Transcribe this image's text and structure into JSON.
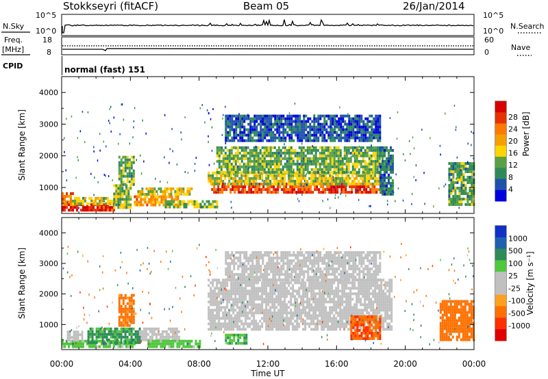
{
  "header": {
    "title": "Stokkseyri (fitACF)",
    "beam": "Beam 05",
    "date": "26/Jan/2014"
  },
  "noise_panel": {
    "left_label": "N.Sky",
    "right_label": "N.Search",
    "left_ticks": [
      "10^5",
      "10^0"
    ],
    "right_ticks": [
      "10^5",
      "10^0"
    ]
  },
  "freq_panel": {
    "left_label_1": "Freq.",
    "left_label_2": "[MHz]",
    "right_label": "Nave",
    "left_ticks": [
      "18",
      "8"
    ],
    "right_ticks": [
      "60",
      "0"
    ]
  },
  "cpid_panel": {
    "label": "CPID",
    "program": "normal (fast) 151"
  },
  "time_axis": {
    "label": "Time UT",
    "ticks": [
      "00:00",
      "04:00",
      "08:00",
      "12:00",
      "16:00",
      "20:00",
      "00:00"
    ]
  },
  "colors": {
    "power": [
      "#0000e0",
      "#1e52aa",
      "#2e8b57",
      "#5aa046",
      "#ffd400",
      "#f4a000",
      "#ff7a00",
      "#e83000",
      "#d80000"
    ],
    "velocity": [
      "#1030c8",
      "#2060b0",
      "#2e8b57",
      "#4ec83c",
      "#c0c0c0",
      "#c0c0c0",
      "#ffa020",
      "#ff7000",
      "#ff3000",
      "#e00000"
    ]
  },
  "chart_data": [
    {
      "type": "heatmap",
      "title": "",
      "xlabel": "Time UT",
      "ylabel": "Slant Range [km]",
      "x_range_hours": [
        0,
        24
      ],
      "ylim": [
        180,
        4500
      ],
      "yticks": [
        "1000",
        "2000",
        "3000",
        "4000"
      ],
      "colorbar": {
        "label": "Power [dB]",
        "ticks": [
          "4",
          "8",
          "12",
          "16",
          "20",
          "24",
          "28"
        ],
        "range": [
          0,
          30
        ]
      },
      "regions": [
        {
          "t": [
            0.0,
            3.0
          ],
          "r": [
            250,
            500
          ],
          "power": 27
        },
        {
          "t": [
            0.0,
            0.6
          ],
          "r": [
            500,
            850
          ],
          "power": 22
        },
        {
          "t": [
            0.6,
            3.2
          ],
          "r": [
            500,
            700
          ],
          "power": 14
        },
        {
          "t": [
            3.0,
            4.0
          ],
          "r": [
            400,
            1100
          ],
          "power": 13
        },
        {
          "t": [
            3.3,
            4.2
          ],
          "r": [
            1100,
            2000
          ],
          "power": 11
        },
        {
          "t": [
            4.2,
            6.8
          ],
          "r": [
            450,
            750
          ],
          "power": 19
        },
        {
          "t": [
            4.4,
            7.6
          ],
          "r": [
            750,
            1000
          ],
          "power": 15
        },
        {
          "t": [
            6.0,
            9.0
          ],
          "r": [
            350,
            600
          ],
          "power": 12
        },
        {
          "t": [
            8.7,
            18.8
          ],
          "r": [
            850,
            1150
          ],
          "power": 25
        },
        {
          "t": [
            8.5,
            18.5
          ],
          "r": [
            1150,
            1500
          ],
          "power": 14
        },
        {
          "t": [
            9.0,
            18.5
          ],
          "r": [
            1500,
            2300
          ],
          "power": 11
        },
        {
          "t": [
            9.5,
            18.5
          ],
          "r": [
            2500,
            3300
          ],
          "power": 5
        },
        {
          "t": [
            18.5,
            19.3
          ],
          "r": [
            800,
            2300
          ],
          "power": 7
        },
        {
          "t": [
            22.5,
            24.0
          ],
          "r": [
            500,
            1800
          ],
          "power": 10
        }
      ]
    },
    {
      "type": "heatmap",
      "title": "",
      "xlabel": "Time UT",
      "ylabel": "Slant Range [km]",
      "x_range_hours": [
        0,
        24
      ],
      "ylim": [
        180,
        4500
      ],
      "yticks": [
        "1000",
        "2000",
        "3000",
        "4000"
      ],
      "colorbar": {
        "label": "Velocity [m s⁻¹]",
        "ticks": [
          "1000",
          "500",
          "100",
          "25",
          "-25",
          "-100",
          "-500",
          "-1000"
        ],
        "range": [
          -1200,
          1200
        ]
      },
      "regions": [
        {
          "t": [
            0.0,
            4.2
          ],
          "r": [
            250,
            500
          ],
          "velocity": 60
        },
        {
          "t": [
            0.3,
            1.2
          ],
          "r": [
            500,
            800
          ],
          "velocity": 0
        },
        {
          "t": [
            1.5,
            4.5
          ],
          "r": [
            450,
            900
          ],
          "velocity": 120
        },
        {
          "t": [
            3.3,
            4.2
          ],
          "r": [
            1000,
            2000
          ],
          "velocity": -150
        },
        {
          "t": [
            4.5,
            6.8
          ],
          "r": [
            500,
            900
          ],
          "velocity": 0
        },
        {
          "t": [
            5.0,
            8.0
          ],
          "r": [
            250,
            500
          ],
          "velocity": 60
        },
        {
          "t": [
            9.5,
            10.7
          ],
          "r": [
            350,
            700
          ],
          "velocity": 100
        },
        {
          "t": [
            8.5,
            19.2
          ],
          "r": [
            850,
            2500
          ],
          "velocity": 0
        },
        {
          "t": [
            9.5,
            18.5
          ],
          "r": [
            2500,
            3400
          ],
          "velocity": 0
        },
        {
          "t": [
            16.8,
            18.5
          ],
          "r": [
            500,
            1300
          ],
          "velocity": -450
        },
        {
          "t": [
            22.0,
            24.0
          ],
          "r": [
            500,
            1800
          ],
          "velocity": -200
        }
      ]
    }
  ]
}
